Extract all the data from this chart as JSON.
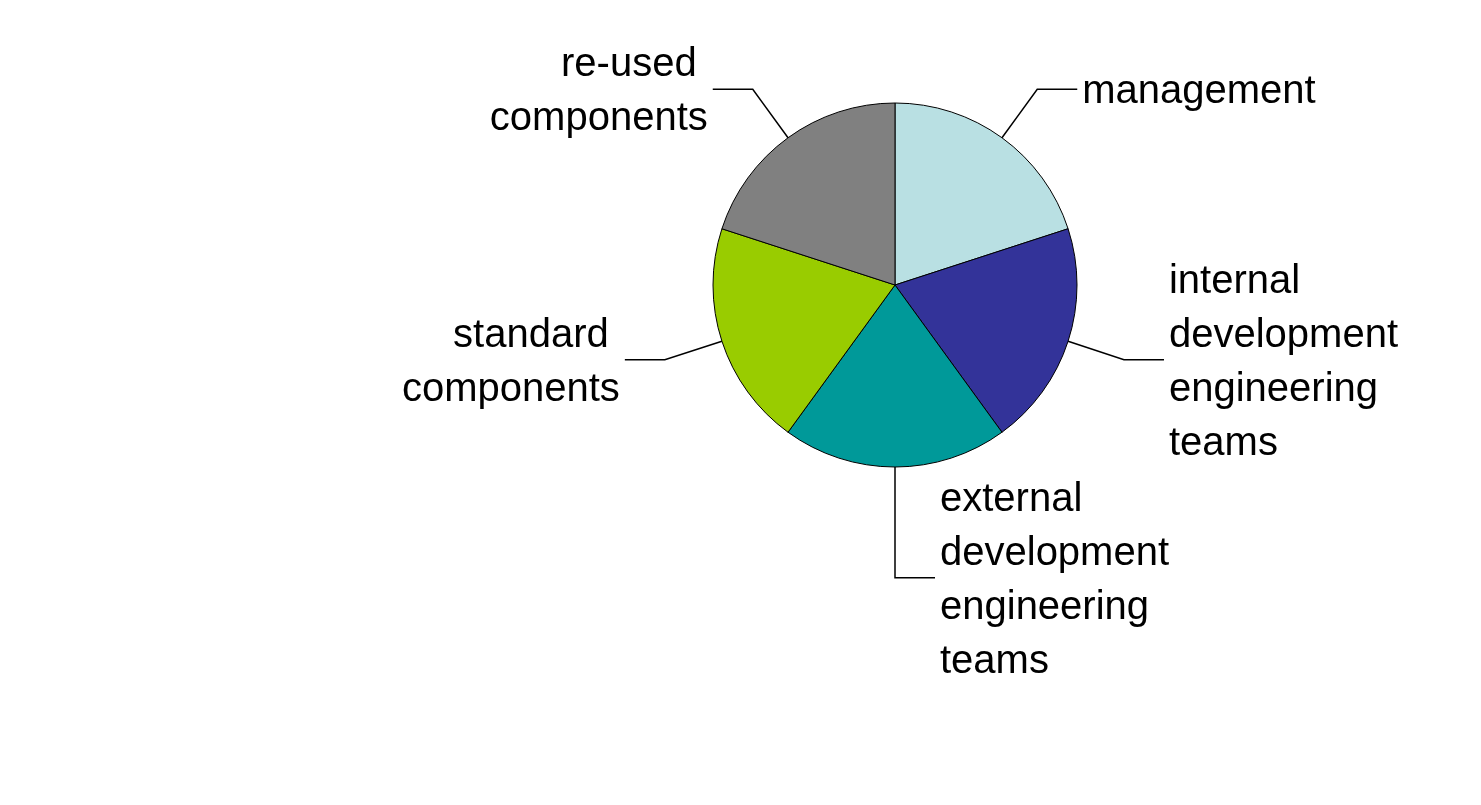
{
  "chart_data": {
    "type": "pie",
    "categories": [
      "management",
      "internal development engineering teams",
      "external development engineering teams",
      "standard components",
      "re-used components"
    ],
    "values": [
      20,
      20,
      20,
      20,
      20
    ],
    "colors": [
      "#b9e0e3",
      "#333399",
      "#009999",
      "#99cc00",
      "#808080"
    ],
    "legend": false
  }
}
